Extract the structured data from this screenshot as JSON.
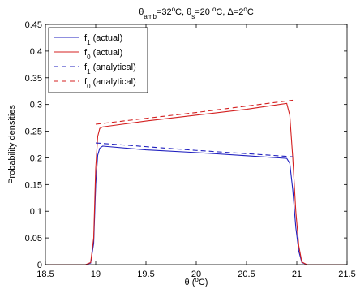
{
  "chart_data": {
    "type": "line",
    "title": {
      "parts": [
        {
          "text": "θ",
          "style": "normal"
        },
        {
          "text": "amb",
          "style": "sub"
        },
        {
          "text": "=32",
          "style": "normal"
        },
        {
          "text": "o",
          "style": "sup"
        },
        {
          "text": "C, θ",
          "style": "normal"
        },
        {
          "text": "s",
          "style": "sub"
        },
        {
          "text": "=20 ",
          "style": "normal"
        },
        {
          "text": "o",
          "style": "sup"
        },
        {
          "text": "C, Δ=2",
          "style": "normal"
        },
        {
          "text": "o",
          "style": "sup"
        },
        {
          "text": "C",
          "style": "normal"
        }
      ]
    },
    "xlabel": {
      "parts": [
        {
          "text": "θ (",
          "style": "normal"
        },
        {
          "text": "o",
          "style": "sup"
        },
        {
          "text": "C)",
          "style": "normal"
        }
      ]
    },
    "ylabel": "Probability densities",
    "xlim": [
      18.5,
      21.5
    ],
    "ylim": [
      0,
      0.45
    ],
    "xticks": [
      "18.5",
      "19",
      "19.5",
      "20",
      "20.5",
      "21",
      "21.5"
    ],
    "yticks": [
      "0",
      "0.05",
      "0.1",
      "0.15",
      "0.2",
      "0.25",
      "0.3",
      "0.35",
      "0.4",
      "0.45"
    ],
    "grid": false,
    "legend_position": "top-left",
    "series": [
      {
        "name": {
          "parts": [
            {
              "text": "f",
              "style": "normal"
            },
            {
              "text": "1",
              "style": "sub"
            },
            {
              "text": " (actual)",
              "style": "normal"
            }
          ]
        },
        "color": "#1f1fbf",
        "dash": "solid",
        "points": [
          [
            18.5,
            0
          ],
          [
            18.9,
            0
          ],
          [
            18.95,
            0.003
          ],
          [
            18.98,
            0.04
          ],
          [
            19.0,
            0.15
          ],
          [
            19.02,
            0.205
          ],
          [
            19.04,
            0.218
          ],
          [
            19.07,
            0.222
          ],
          [
            19.5,
            0.215
          ],
          [
            20.0,
            0.21
          ],
          [
            20.5,
            0.204
          ],
          [
            20.9,
            0.199
          ],
          [
            20.93,
            0.19
          ],
          [
            20.96,
            0.14
          ],
          [
            20.99,
            0.07
          ],
          [
            21.02,
            0.025
          ],
          [
            21.05,
            0.004
          ],
          [
            21.1,
            0
          ],
          [
            21.5,
            0
          ]
        ]
      },
      {
        "name": {
          "parts": [
            {
              "text": "f",
              "style": "normal"
            },
            {
              "text": "0",
              "style": "sub"
            },
            {
              "text": " (actual)",
              "style": "normal"
            }
          ]
        },
        "color": "#d42020",
        "dash": "solid",
        "points": [
          [
            18.5,
            0
          ],
          [
            18.9,
            0
          ],
          [
            18.95,
            0.004
          ],
          [
            18.98,
            0.05
          ],
          [
            19.0,
            0.18
          ],
          [
            19.02,
            0.24
          ],
          [
            19.04,
            0.255
          ],
          [
            19.07,
            0.258
          ],
          [
            19.5,
            0.269
          ],
          [
            20.0,
            0.28
          ],
          [
            20.5,
            0.291
          ],
          [
            20.9,
            0.302
          ],
          [
            20.93,
            0.28
          ],
          [
            20.96,
            0.2
          ],
          [
            20.99,
            0.1
          ],
          [
            21.02,
            0.035
          ],
          [
            21.05,
            0.005
          ],
          [
            21.1,
            0
          ],
          [
            21.5,
            0
          ]
        ]
      },
      {
        "name": {
          "parts": [
            {
              "text": "f",
              "style": "normal"
            },
            {
              "text": "1",
              "style": "sub"
            },
            {
              "text": " (analytical)",
              "style": "normal"
            }
          ]
        },
        "color": "#1f1fbf",
        "dash": "dashed",
        "points": [
          [
            19.0,
            0.228
          ],
          [
            19.5,
            0.221
          ],
          [
            20.0,
            0.214
          ],
          [
            20.5,
            0.208
          ],
          [
            20.96,
            0.202
          ]
        ]
      },
      {
        "name": {
          "parts": [
            {
              "text": "f",
              "style": "normal"
            },
            {
              "text": "0",
              "style": "sub"
            },
            {
              "text": " (analytical)",
              "style": "normal"
            }
          ]
        },
        "color": "#d42020",
        "dash": "dashed",
        "points": [
          [
            19.0,
            0.263
          ],
          [
            19.5,
            0.274
          ],
          [
            20.0,
            0.285
          ],
          [
            20.5,
            0.297
          ],
          [
            20.96,
            0.308
          ]
        ]
      }
    ]
  }
}
